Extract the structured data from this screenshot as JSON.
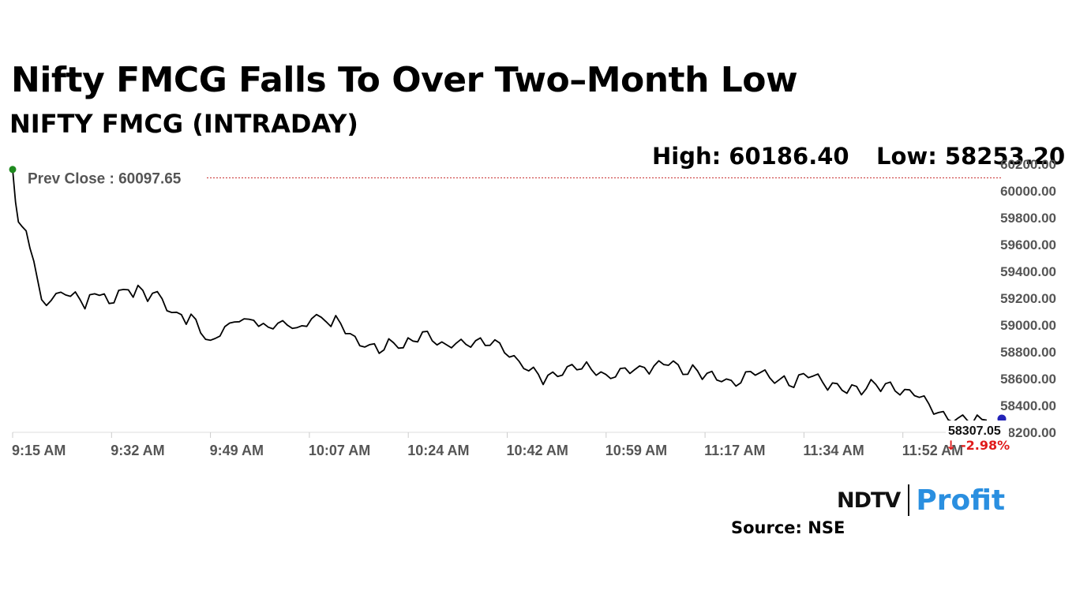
{
  "headline": "Nifty FMCG Falls To Over Two–Month Low",
  "subheadline": "NIFTY FMCG (INTRADAY)",
  "high_label": "High: 60186.40",
  "low_label": "Low: 58253.20",
  "brand": {
    "ndtv": "NDTV",
    "profit": "Profit"
  },
  "source": "Source: NSE",
  "colors": {
    "line": "#000000",
    "prev_close": "#c62828",
    "start_dot": "#1e8a1e",
    "end_dot": "#2323b8",
    "change": "#e01b1b",
    "axis": "#555555"
  },
  "chart_data": {
    "type": "line",
    "title": "NIFTY FMCG (INTRADAY)",
    "ylim": [
      58200,
      60200
    ],
    "y_ticks": [
      "60200.00",
      "60000.00",
      "59800.00",
      "59600.00",
      "59400.00",
      "59200.00",
      "59000.00",
      "58800.00",
      "58600.00",
      "58400.00",
      "58200.00"
    ],
    "x_ticks": [
      "9:15 AM",
      "9:32 AM",
      "9:49 AM",
      "10:07 AM",
      "10:24 AM",
      "10:42 AM",
      "10:59 AM",
      "11:17 AM",
      "11:34 AM",
      "11:52 AM"
    ],
    "prev_close": 60097.65,
    "prev_close_label": "Prev Close : 60097.65",
    "high": 60186.4,
    "low": 58253.2,
    "last": 58307.05,
    "last_label": "58307.05",
    "change_label": "-2.98%",
    "series": [
      {
        "values": [
          [
            0,
            60160
          ],
          [
            0.3,
            59950
          ],
          [
            0.6,
            59760
          ],
          [
            1.0,
            59700
          ],
          [
            1.4,
            59720
          ],
          [
            1.8,
            59600
          ],
          [
            2.2,
            59450
          ],
          [
            2.6,
            59310
          ],
          [
            3.0,
            59220
          ],
          [
            3.5,
            59160
          ],
          [
            4.0,
            59150
          ],
          [
            4.5,
            59230
          ],
          [
            5.0,
            59280
          ],
          [
            5.5,
            59220
          ],
          [
            6.0,
            59180
          ],
          [
            6.5,
            59260
          ],
          [
            7.0,
            59220
          ],
          [
            7.5,
            59100
          ],
          [
            8.0,
            59200
          ],
          [
            8.5,
            59260
          ],
          [
            9.0,
            59240
          ],
          [
            9.5,
            59200
          ],
          [
            10.0,
            59150
          ],
          [
            10.5,
            59200
          ],
          [
            11.0,
            59260
          ],
          [
            11.5,
            59230
          ],
          [
            12.0,
            59270
          ],
          [
            12.5,
            59240
          ],
          [
            13.0,
            59280
          ],
          [
            13.5,
            59230
          ],
          [
            14.0,
            59200
          ],
          [
            14.5,
            59260
          ],
          [
            15.0,
            59220
          ],
          [
            15.5,
            59180
          ],
          [
            16.0,
            59140
          ],
          [
            16.5,
            59100
          ],
          [
            17.0,
            59060
          ],
          [
            17.5,
            59080
          ],
          [
            18.0,
            59040
          ],
          [
            18.5,
            59070
          ],
          [
            19.0,
            59010
          ],
          [
            19.5,
            58960
          ],
          [
            20.0,
            58920
          ],
          [
            20.5,
            58860
          ],
          [
            21.0,
            58880
          ],
          [
            21.5,
            58950
          ],
          [
            22.0,
            59000
          ],
          [
            22.5,
            58980
          ],
          [
            23.0,
            59020
          ],
          [
            23.5,
            59060
          ],
          [
            24.0,
            59040
          ],
          [
            24.5,
            59010
          ],
          [
            25.0,
            59050
          ],
          [
            25.5,
            59020
          ],
          [
            26.0,
            58990
          ],
          [
            26.5,
            58960
          ],
          [
            27.0,
            59000
          ],
          [
            27.5,
            59030
          ],
          [
            28.0,
            59000
          ],
          [
            28.5,
            58990
          ],
          [
            29.0,
            59010
          ],
          [
            29.5,
            58980
          ],
          [
            30.0,
            58960
          ],
          [
            30.5,
            59000
          ],
          [
            31.0,
            59080
          ],
          [
            31.5,
            59060
          ],
          [
            32.0,
            59030
          ],
          [
            32.5,
            59050
          ],
          [
            33.0,
            59010
          ],
          [
            33.5,
            59040
          ],
          [
            34.0,
            59000
          ],
          [
            34.5,
            58970
          ],
          [
            35.0,
            58940
          ],
          [
            35.5,
            58880
          ],
          [
            36.0,
            58850
          ],
          [
            36.5,
            58870
          ],
          [
            37.0,
            58840
          ],
          [
            37.5,
            58830
          ],
          [
            38.0,
            58810
          ],
          [
            38.5,
            58840
          ],
          [
            39.0,
            58870
          ],
          [
            39.5,
            58850
          ],
          [
            40.0,
            58860
          ],
          [
            40.5,
            58840
          ],
          [
            41.0,
            58870
          ],
          [
            41.5,
            58880
          ],
          [
            42.0,
            58910
          ],
          [
            42.5,
            58940
          ],
          [
            43.0,
            58920
          ],
          [
            43.5,
            58900
          ],
          [
            44.0,
            58880
          ],
          [
            44.5,
            58850
          ],
          [
            45.0,
            58830
          ],
          [
            45.5,
            58860
          ],
          [
            46.0,
            58880
          ],
          [
            46.5,
            58860
          ],
          [
            47.0,
            58850
          ],
          [
            47.5,
            58870
          ],
          [
            48.0,
            58880
          ],
          [
            48.5,
            58870
          ],
          [
            49.0,
            58860
          ],
          [
            49.5,
            58880
          ],
          [
            50.0,
            58870
          ],
          [
            50.5,
            58840
          ],
          [
            51.0,
            58820
          ],
          [
            51.5,
            58780
          ],
          [
            52.0,
            58740
          ],
          [
            52.5,
            58720
          ],
          [
            53.0,
            58710
          ],
          [
            53.5,
            58660
          ],
          [
            54.0,
            58650
          ],
          [
            54.5,
            58640
          ],
          [
            55.0,
            58590
          ],
          [
            55.5,
            58610
          ],
          [
            56.0,
            58620
          ],
          [
            56.5,
            58640
          ],
          [
            57.0,
            58650
          ],
          [
            57.5,
            58660
          ],
          [
            58.0,
            58690
          ],
          [
            58.5,
            58700
          ],
          [
            59.0,
            58680
          ],
          [
            59.5,
            58690
          ],
          [
            60.0,
            58670
          ],
          [
            60.5,
            58660
          ],
          [
            61.0,
            58640
          ],
          [
            61.5,
            58600
          ],
          [
            62.0,
            58620
          ],
          [
            62.5,
            58640
          ],
          [
            63.0,
            58650
          ],
          [
            63.5,
            58660
          ],
          [
            64.0,
            58670
          ],
          [
            64.5,
            58680
          ],
          [
            65.0,
            58660
          ],
          [
            65.5,
            58680
          ],
          [
            66.0,
            58670
          ],
          [
            66.5,
            58690
          ],
          [
            67.0,
            58700
          ],
          [
            67.5,
            58720
          ],
          [
            68.0,
            58730
          ],
          [
            68.5,
            58710
          ],
          [
            69.0,
            58680
          ],
          [
            69.5,
            58660
          ],
          [
            70.0,
            58650
          ],
          [
            70.5,
            58670
          ],
          [
            71.0,
            58650
          ],
          [
            71.5,
            58630
          ],
          [
            72.0,
            58640
          ],
          [
            72.5,
            58620
          ],
          [
            73.0,
            58600
          ],
          [
            73.5,
            58610
          ],
          [
            74.0,
            58580
          ],
          [
            74.5,
            58560
          ],
          [
            75.0,
            58570
          ],
          [
            75.5,
            58590
          ],
          [
            76.0,
            58620
          ],
          [
            76.5,
            58640
          ],
          [
            77.0,
            58660
          ],
          [
            77.5,
            58650
          ],
          [
            78.0,
            58630
          ],
          [
            78.5,
            58610
          ],
          [
            79.0,
            58600
          ],
          [
            79.5,
            58580
          ],
          [
            80.0,
            58590
          ],
          [
            80.5,
            58570
          ],
          [
            81.0,
            58560
          ],
          [
            81.5,
            58600
          ],
          [
            82.0,
            58620
          ],
          [
            82.5,
            58640
          ],
          [
            83.0,
            58630
          ],
          [
            83.5,
            58600
          ],
          [
            84.0,
            58570
          ],
          [
            84.5,
            58550
          ],
          [
            85.0,
            58560
          ],
          [
            85.5,
            58530
          ],
          [
            86.0,
            58530
          ],
          [
            86.5,
            58520
          ],
          [
            87.0,
            58530
          ],
          [
            87.5,
            58520
          ],
          [
            88.0,
            58510
          ],
          [
            88.5,
            58540
          ],
          [
            89.0,
            58560
          ],
          [
            89.5,
            58550
          ],
          [
            90.0,
            58540
          ],
          [
            90.5,
            58560
          ],
          [
            91.0,
            58540
          ],
          [
            91.5,
            58520
          ],
          [
            92.0,
            58510
          ],
          [
            92.5,
            58500
          ],
          [
            93.0,
            58490
          ],
          [
            93.5,
            58500
          ],
          [
            94.0,
            58480
          ],
          [
            94.5,
            58440
          ],
          [
            95.0,
            58400
          ],
          [
            95.5,
            58370
          ],
          [
            96.0,
            58350
          ],
          [
            96.5,
            58320
          ],
          [
            97.0,
            58300
          ],
          [
            97.5,
            58310
          ],
          [
            98.0,
            58290
          ],
          [
            98.5,
            58300
          ],
          [
            99.0,
            58310
          ],
          [
            99.5,
            58290
          ],
          [
            100.0,
            58300
          ],
          [
            100.5,
            58280
          ],
          [
            101.0,
            58290
          ]
        ]
      }
    ]
  }
}
